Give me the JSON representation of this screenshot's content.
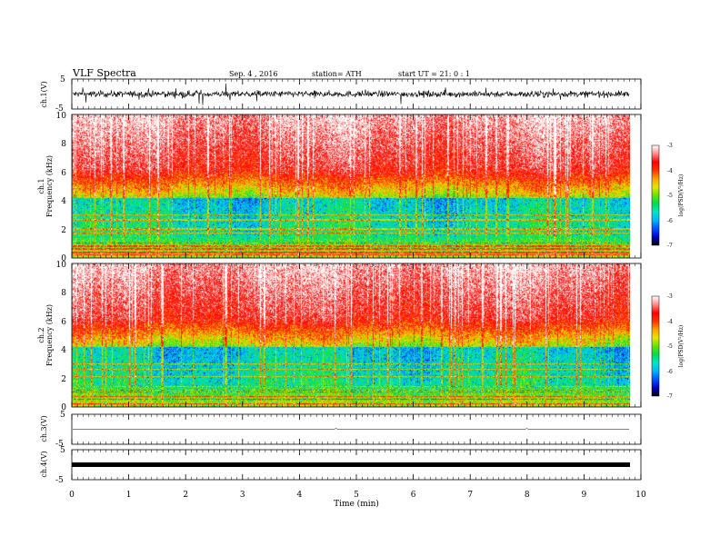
{
  "header": {
    "title": "VLF  Spectra",
    "date": "Sep. 4  , 2016",
    "station": "station= ATH",
    "start": "start  UT =   21: 0   : 1"
  },
  "chart_data": [
    {
      "type": "line",
      "ylabel": "ch.1(V)",
      "yticks": [
        "5",
        "-5"
      ],
      "ylim": [
        -5,
        5
      ],
      "description_series": "noisy waveform, amplitude about ±2 V"
    },
    {
      "type": "heatmap",
      "ylabel_top": "ch.1",
      "ylabel": "Frequency (kHz)",
      "yticks": [
        "0",
        "2",
        "4",
        "6",
        "8",
        "10"
      ],
      "ylim": [
        0,
        10
      ],
      "colorbar_label": "log(PSD(V²/Hz)",
      "colorbar_ticks": [
        "-3",
        "-4",
        "-5",
        "-6",
        "-7"
      ],
      "colorbar_range": [
        -7,
        -3
      ]
    },
    {
      "type": "heatmap",
      "ylabel_top": "ch.2",
      "ylabel": "Frequency (kHz)",
      "yticks": [
        "0",
        "2",
        "4",
        "6",
        "8",
        "10"
      ],
      "ylim": [
        0,
        10
      ],
      "colorbar_label": "log(PSD(V²/Hz)",
      "colorbar_ticks": [
        "-3",
        "-4",
        "-5",
        "-6",
        "-7"
      ],
      "colorbar_range": [
        -7,
        -3
      ]
    },
    {
      "type": "line",
      "ylabel": "ch.3(V)",
      "yticks": [
        "5",
        "-5"
      ],
      "ylim": [
        -5,
        5
      ]
    },
    {
      "type": "line",
      "ylabel": "ch.4(V)",
      "yticks": [
        "5",
        "-5"
      ],
      "ylim": [
        -5,
        5
      ]
    }
  ],
  "xaxis": {
    "label": "Time  (min)",
    "ticks": [
      "0",
      "1",
      "2",
      "3",
      "4",
      "5",
      "6",
      "7",
      "8",
      "9",
      "10"
    ],
    "xlim": [
      0,
      10
    ],
    "data_end": 9.8
  },
  "colors": {
    "colormap": [
      "#000000",
      "#0000c8",
      "#0050ff",
      "#00b4ff",
      "#00e6c8",
      "#00dc50",
      "#64e600",
      "#e6e600",
      "#ffa000",
      "#ff3200",
      "#ff0000",
      "#ff8c8c",
      "#ffffff"
    ]
  }
}
